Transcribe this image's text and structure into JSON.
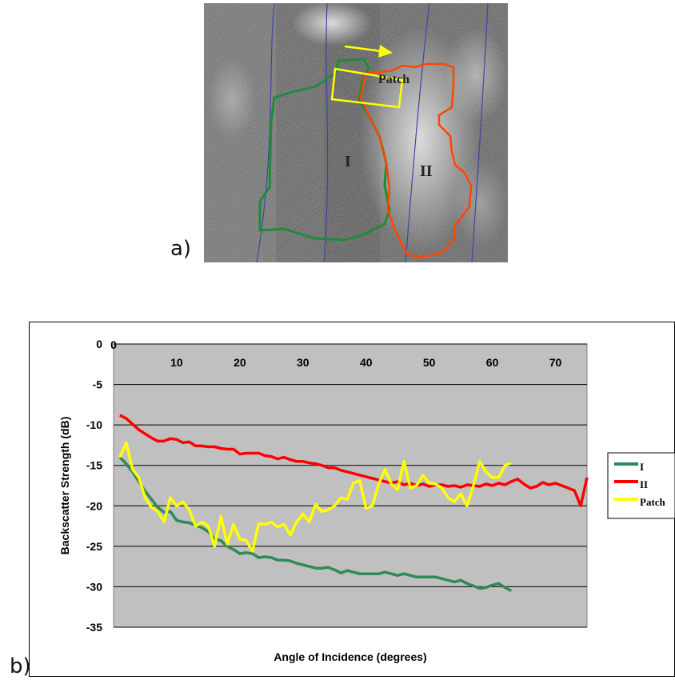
{
  "panel_a": {
    "label": "a)",
    "region_labels": {
      "patch": "Patch",
      "region_1": "I",
      "region_2": "II"
    },
    "colors": {
      "region_1": "#1e8c3a",
      "region_2": "#ff4500",
      "patch": "#ffff00",
      "arrow": "#ffff00"
    }
  },
  "panel_b": {
    "label": "b)"
  },
  "chart_data": {
    "type": "line",
    "title": "",
    "xlabel": "Angle of Incidence (degrees)",
    "ylabel": "Backscatter Strength (dB)",
    "xlim": [
      0,
      75
    ],
    "ylim": [
      -35,
      0
    ],
    "x_ticks": [
      10,
      20,
      30,
      40,
      50,
      60,
      70
    ],
    "y_ticks": [
      0,
      -5,
      -10,
      -15,
      -20,
      -25,
      -30,
      -35
    ],
    "x_axis_position": "top",
    "grid": true,
    "plot_background": "#c0c0c0",
    "legend_placement": "right",
    "series": [
      {
        "name": "I",
        "color": "#2e8b57",
        "x": [
          1,
          2,
          3,
          4,
          5,
          6,
          7,
          8,
          9,
          10,
          11,
          12,
          13,
          14,
          15,
          16,
          17,
          18,
          19,
          20,
          21,
          22,
          23,
          24,
          25,
          26,
          27,
          28,
          29,
          30,
          31,
          32,
          33,
          34,
          35,
          36,
          37,
          38,
          39,
          40,
          41,
          42,
          43,
          44,
          45,
          46,
          47,
          48,
          49,
          50,
          51,
          52,
          53,
          54,
          55,
          56,
          57,
          58,
          59,
          60,
          61,
          62,
          63
        ],
        "y": [
          -14,
          -14.8,
          -15.8,
          -17,
          -18.2,
          -19.2,
          -20.2,
          -20.8,
          -20.7,
          -21.8,
          -22,
          -22.1,
          -22.4,
          -22.7,
          -23.2,
          -24.1,
          -24.3,
          -25,
          -25.4,
          -25.9,
          -25.8,
          -25.9,
          -26.4,
          -26.3,
          -26.4,
          -26.7,
          -26.7,
          -26.8,
          -27.1,
          -27.3,
          -27.5,
          -27.7,
          -27.7,
          -27.6,
          -27.9,
          -28.3,
          -28,
          -28.2,
          -28.4,
          -28.4,
          -28.4,
          -28.4,
          -28.2,
          -28.4,
          -28.6,
          -28.4,
          -28.6,
          -28.8,
          -28.8,
          -28.8,
          -28.8,
          -29,
          -29.2,
          -29.4,
          -29.2,
          -29.6,
          -29.9,
          -30.2,
          -30.1,
          -29.8,
          -29.6,
          -30.1,
          -30.5
        ]
      },
      {
        "name": "II",
        "color": "#ff0000",
        "x": [
          1,
          2,
          3,
          4,
          5,
          6,
          7,
          8,
          9,
          10,
          11,
          12,
          13,
          14,
          15,
          16,
          17,
          18,
          19,
          20,
          21,
          22,
          23,
          24,
          25,
          26,
          27,
          28,
          29,
          30,
          31,
          32,
          33,
          34,
          35,
          36,
          37,
          38,
          39,
          40,
          41,
          42,
          43,
          44,
          45,
          46,
          47,
          48,
          49,
          50,
          51,
          52,
          53,
          54,
          55,
          56,
          57,
          58,
          59,
          60,
          61,
          62,
          63,
          64,
          65,
          66,
          67,
          68,
          69,
          70,
          71,
          72,
          73,
          74,
          75
        ],
        "y": [
          -8.8,
          -9.2,
          -9.9,
          -10.6,
          -11.1,
          -11.6,
          -12,
          -12,
          -11.7,
          -11.8,
          -12.2,
          -12.1,
          -12.6,
          -12.6,
          -12.7,
          -12.7,
          -12.9,
          -13,
          -13,
          -13.6,
          -13.5,
          -13.5,
          -13.5,
          -13.8,
          -13.9,
          -14.2,
          -14,
          -14.3,
          -14.5,
          -14.5,
          -14.7,
          -14.8,
          -15,
          -15.3,
          -15.3,
          -15.6,
          -15.8,
          -16,
          -16.2,
          -16.4,
          -16.6,
          -16.8,
          -17,
          -17.2,
          -17,
          -17.4,
          -17.2,
          -17.5,
          -17.3,
          -17.6,
          -17.4,
          -17.4,
          -17.6,
          -17.5,
          -17.7,
          -17.4,
          -17.5,
          -17.6,
          -17.3,
          -17.5,
          -17.2,
          -17.4,
          -17,
          -16.7,
          -17.3,
          -17.8,
          -17.6,
          -17.1,
          -17.4,
          -17.2,
          -17.5,
          -17.8,
          -18.1,
          -20,
          -16.5
        ]
      },
      {
        "name": "Patch",
        "color": "#ffff00",
        "x": [
          1,
          2,
          3,
          4,
          5,
          6,
          7,
          8,
          9,
          10,
          11,
          12,
          13,
          14,
          15,
          16,
          17,
          18,
          19,
          20,
          21,
          22,
          23,
          24,
          25,
          26,
          27,
          28,
          29,
          30,
          31,
          32,
          33,
          34,
          35,
          36,
          37,
          38,
          39,
          40,
          41,
          42,
          43,
          44,
          45,
          46,
          47,
          48,
          49,
          50,
          51,
          52,
          53,
          54,
          55,
          56,
          57,
          58,
          59,
          60,
          61,
          62,
          63
        ],
        "y": [
          -14,
          -12.2,
          -15.5,
          -16.5,
          -19,
          -20.2,
          -20.7,
          -22,
          -19,
          -20,
          -19.5,
          -20.5,
          -22.5,
          -22,
          -22.5,
          -25,
          -21.3,
          -24.7,
          -22.3,
          -24.1,
          -24.3,
          -25.6,
          -22.2,
          -22.3,
          -22,
          -22.6,
          -22.3,
          -23.6,
          -22,
          -21,
          -22,
          -19.8,
          -20.7,
          -20.5,
          -20,
          -19,
          -19.2,
          -17.2,
          -16.9,
          -20.3,
          -20,
          -17.3,
          -15.5,
          -17.3,
          -18,
          -14.5,
          -17.8,
          -17.5,
          -16.2,
          -17.2,
          -17.3,
          -17.8,
          -19,
          -19.5,
          -18.5,
          -20,
          -17.5,
          -14.5,
          -15.8,
          -16.5,
          -16.5,
          -15,
          -14.7
        ]
      }
    ]
  }
}
